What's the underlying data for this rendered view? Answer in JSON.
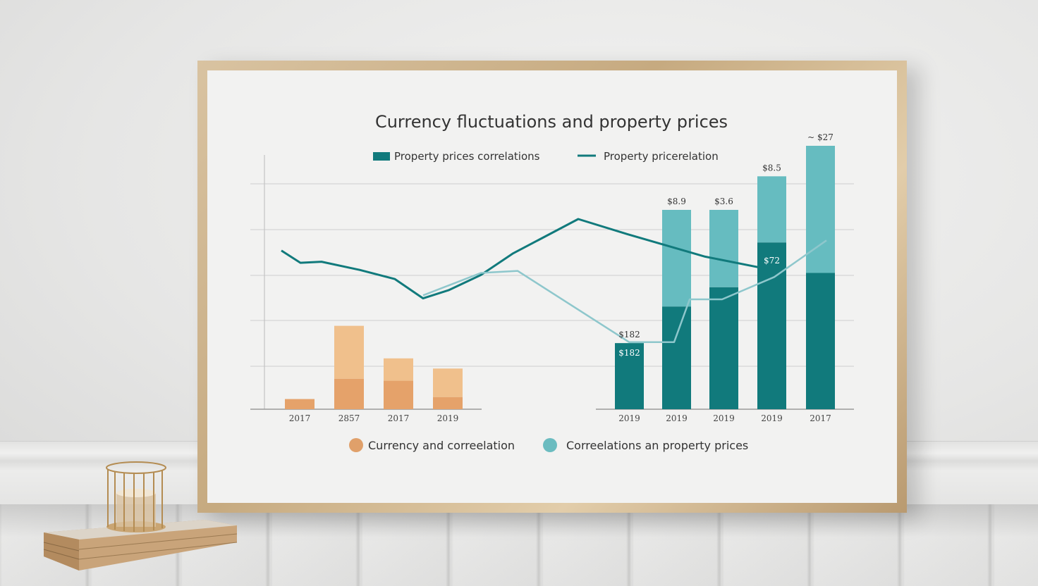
{
  "chart_data": {
    "type": "bar",
    "title": "Currency fluctuations and property prices",
    "legend_top": [
      {
        "name": "Property prices correlations",
        "marker": "bar",
        "color": "#117a7c"
      },
      {
        "name": "Property pricerelation",
        "marker": "line",
        "color": "#117a7c"
      }
    ],
    "legend_bottom": [
      {
        "name": "Currency and correelation",
        "marker": "dot",
        "color": "#e0a06a"
      },
      {
        "name": "Correelations an property prices",
        "marker": "dot",
        "color": "#6bbcc0"
      }
    ],
    "left_group": {
      "categories": [
        "2017",
        "2857",
        "2017",
        "2019"
      ],
      "series": [
        {
          "color": "#e5a26a",
          "values": [
            1.0,
            3.0,
            2.8,
            1.2
          ]
        },
        {
          "color": "#f0c08c",
          "values": [
            0,
            5.2,
            2.2,
            2.8
          ]
        }
      ]
    },
    "right_group": {
      "categories": [
        "2019",
        "2019",
        "2019",
        "2019",
        "2017"
      ],
      "data_labels": [
        "$182",
        "$8.9",
        "$3.6",
        "$8.5",
        "$27"
      ],
      "inner_labels": [
        "$182",
        "",
        "",
        "$72",
        ""
      ],
      "top_label_prefix": [
        "",
        "",
        "",
        "",
        "~"
      ],
      "series": [
        {
          "color": "#117a7c",
          "values": [
            6.5,
            10.1,
            12.0,
            16.4,
            13.4
          ]
        },
        {
          "color": "#66bcc0",
          "values": [
            0,
            9.5,
            7.6,
            6.5,
            12.5
          ]
        }
      ]
    },
    "lines": [
      {
        "color": "#117a7c",
        "values": [
          15.6,
          14.4,
          14.5,
          13.7,
          12.8,
          10.9,
          11.7,
          13.2,
          15.3,
          18.7,
          17.2,
          15.0,
          13.9
        ]
      },
      {
        "color": "#8ec7cc",
        "values": [
          11.2,
          13.4,
          13.6,
          6.6,
          6.6,
          10.8,
          10.8,
          13.0,
          16.6
        ]
      }
    ],
    "ylim": [
      0,
      25
    ],
    "grid": true
  },
  "scene": {
    "colors": {
      "frame": "#c8ac84",
      "mat": "#f2f2f1",
      "wall": "#e9e9e8"
    }
  }
}
